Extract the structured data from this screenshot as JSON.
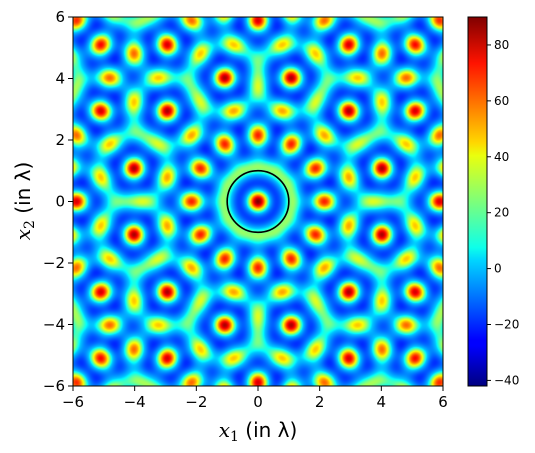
{
  "chart_data": {
    "type": "heatmap",
    "title": "",
    "xlabel": {
      "var": "x",
      "sub": "1",
      "unit": "(in λ)"
    },
    "ylabel": {
      "var": "x",
      "sub": "2",
      "unit": "(in λ)"
    },
    "xlim": [
      -6,
      6
    ],
    "ylim": [
      -6,
      6
    ],
    "xticks": [
      -6,
      -4,
      -2,
      0,
      2,
      4,
      6
    ],
    "yticks": [
      -6,
      -4,
      -2,
      0,
      2,
      4,
      6
    ],
    "xtick_labels": [
      "−6",
      "−4",
      "−2",
      "0",
      "2",
      "4",
      "6"
    ],
    "ytick_labels": [
      "−6",
      "−4",
      "−2",
      "0",
      "2",
      "4",
      "6"
    ],
    "colormap": "jet",
    "clim": [
      -42,
      90
    ],
    "colorbar_ticks": [
      -40,
      -20,
      0,
      20,
      40,
      60,
      80
    ],
    "colorbar_tick_labels": [
      "−40",
      "−20",
      "0",
      "20",
      "40",
      "60",
      "80"
    ],
    "pattern": "hexagonal quasi-periodic interference field",
    "annotation": {
      "shape": "circle",
      "center": [
        0,
        0
      ],
      "radius": 1,
      "color": "#000000"
    },
    "grid": false,
    "legend": "none"
  }
}
